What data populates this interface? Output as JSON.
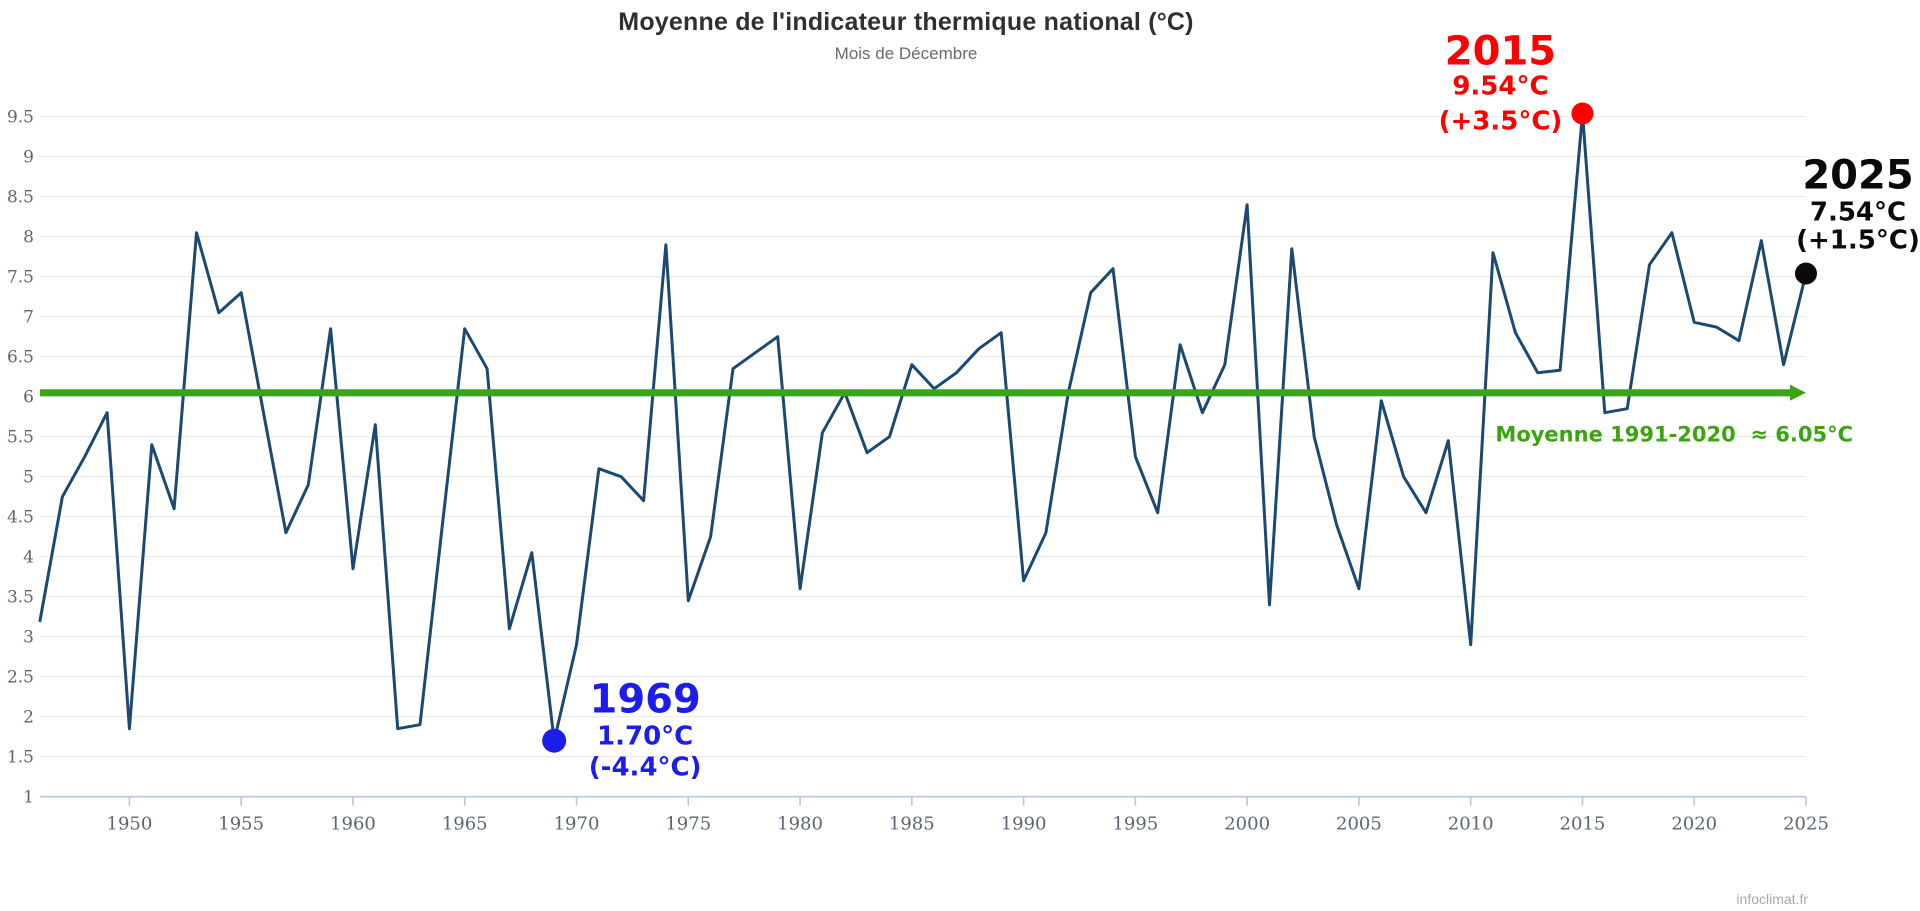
{
  "header": {
    "title": "Moyenne de l'indicateur thermique national (°C)",
    "subtitle": "Mois de Décembre"
  },
  "watermark": "infoclimat.fr",
  "colors": {
    "series_line": "#1b4971",
    "grid": "#e9eaed",
    "axis": "#b9c8dd",
    "tick_label": "#5d6670",
    "reference_green": "#3aa50e",
    "record_high_red": "#ff0000",
    "record_low_blue": "#1d1deb",
    "latest_black": "#0a0a0a",
    "title_color": "#303030",
    "subtitle_color": "#6b6b6b",
    "watermark_color": "#a5a9ad"
  },
  "chart_data": {
    "type": "line",
    "title": "Moyenne de l'indicateur thermique national (°C)",
    "subtitle": "Mois de Décembre",
    "xlabel": "",
    "ylabel": "",
    "grid": "horizontal-only",
    "ylim": [
      1,
      9.75
    ],
    "y_ticks": [
      1,
      1.5,
      2,
      2.5,
      3,
      3.5,
      4,
      4.5,
      5,
      5.5,
      6,
      6.5,
      7,
      7.5,
      8,
      8.5,
      9,
      9.5
    ],
    "x_ticks": [
      1950,
      1955,
      1960,
      1965,
      1970,
      1975,
      1980,
      1985,
      1990,
      1995,
      2000,
      2005,
      2010,
      2015,
      2020,
      2025
    ],
    "years": [
      1946,
      1947,
      1948,
      1949,
      1950,
      1951,
      1952,
      1953,
      1954,
      1955,
      1956,
      1957,
      1958,
      1959,
      1960,
      1961,
      1962,
      1963,
      1964,
      1965,
      1966,
      1967,
      1968,
      1969,
      1970,
      1971,
      1972,
      1973,
      1974,
      1975,
      1976,
      1977,
      1978,
      1979,
      1980,
      1981,
      1982,
      1983,
      1984,
      1985,
      1986,
      1987,
      1988,
      1989,
      1990,
      1991,
      1992,
      1993,
      1994,
      1995,
      1996,
      1997,
      1998,
      1999,
      2000,
      2001,
      2002,
      2003,
      2004,
      2005,
      2006,
      2007,
      2008,
      2009,
      2010,
      2011,
      2012,
      2013,
      2014,
      2015,
      2016,
      2017,
      2018,
      2019,
      2020,
      2021,
      2022,
      2023,
      2024,
      2025
    ],
    "values": [
      3.2,
      4.75,
      5.25,
      5.8,
      1.85,
      5.4,
      4.6,
      8.05,
      7.05,
      7.3,
      5.8,
      4.3,
      4.9,
      6.85,
      3.85,
      5.65,
      1.85,
      1.9,
      4.4,
      6.85,
      6.35,
      3.1,
      4.05,
      1.7,
      2.9,
      5.1,
      5.0,
      4.7,
      7.9,
      3.45,
      4.25,
      6.35,
      6.55,
      6.75,
      3.6,
      5.55,
      6.05,
      5.3,
      5.5,
      6.4,
      6.1,
      6.3,
      6.6,
      6.8,
      3.7,
      4.3,
      6.05,
      7.3,
      7.6,
      5.25,
      4.55,
      6.65,
      5.8,
      6.4,
      8.4,
      3.4,
      7.85,
      5.5,
      4.4,
      3.6,
      5.95,
      5.0,
      4.55,
      5.45,
      2.9,
      7.8,
      6.8,
      6.3,
      6.33,
      9.54,
      5.8,
      5.85,
      7.65,
      8.05,
      6.93,
      6.87,
      6.7,
      7.95,
      6.4,
      7.54
    ],
    "reference_line": {
      "value": 6.05,
      "period": "1991-2020",
      "label": "Moyenne 1991-2020  ≈ 6.05°C"
    },
    "annotations": [
      {
        "id": "record-high-2015",
        "year": 2015,
        "value": 9.54,
        "title": "2015",
        "value_label": "9.54°C",
        "anomaly_label": "(+3.5°C)",
        "color": "#ff0000",
        "placement": "left-of-point"
      },
      {
        "id": "latest-2025",
        "year": 2025,
        "value": 7.54,
        "title": "2025",
        "value_label": "7.54°C",
        "anomaly_label": "(+1.5°C)",
        "color": "#0a0a0a",
        "placement": "above-point"
      },
      {
        "id": "record-low-1969",
        "year": 1969,
        "value": 1.7,
        "title": "1969",
        "value_label": "1.70°C",
        "anomaly_label": "(-4.4°C)",
        "color": "#1d1deb",
        "placement": "right-of-point"
      }
    ]
  }
}
